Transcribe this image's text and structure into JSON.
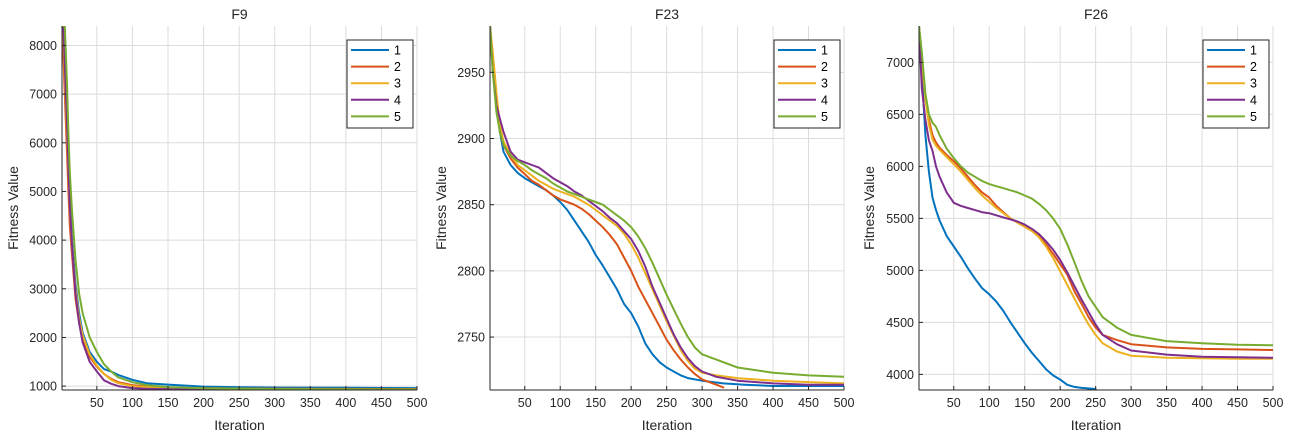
{
  "chart_data": [
    {
      "type": "line",
      "title": "F9",
      "xlabel": "Iteration",
      "ylabel": "Fitness Value",
      "xlim": [
        1,
        500
      ],
      "ylim": [
        920,
        8400
      ],
      "xticks": [
        50,
        100,
        150,
        200,
        250,
        300,
        350,
        400,
        450,
        500
      ],
      "yticks": [
        1000,
        2000,
        3000,
        4000,
        5000,
        6000,
        7000,
        8000
      ],
      "grid": true,
      "legend_position": "top-right",
      "series": [
        {
          "name": "1",
          "color": "#0072BD",
          "x": [
            1,
            3,
            5,
            8,
            10,
            12,
            15,
            20,
            25,
            30,
            40,
            50,
            60,
            70,
            80,
            100,
            120,
            150,
            200,
            250,
            300,
            400,
            500
          ],
          "y": [
            8400,
            8400,
            7800,
            6500,
            5500,
            4800,
            4000,
            3100,
            2500,
            2100,
            1700,
            1500,
            1350,
            1300,
            1230,
            1130,
            1060,
            1030,
            990,
            975,
            970,
            965,
            960
          ]
        },
        {
          "name": "2",
          "color": "#D95319",
          "x": [
            1,
            3,
            5,
            8,
            10,
            12,
            15,
            20,
            25,
            30,
            40,
            50,
            60,
            70,
            80,
            100,
            120,
            150,
            200,
            300,
            400,
            500
          ],
          "y": [
            8400,
            7800,
            7000,
            5800,
            5000,
            4300,
            3700,
            2800,
            2300,
            2000,
            1600,
            1400,
            1250,
            1150,
            1080,
            1020,
            990,
            970,
            955,
            945,
            942,
            940
          ]
        },
        {
          "name": "3",
          "color": "#EDB120",
          "x": [
            1,
            3,
            5,
            8,
            10,
            12,
            15,
            20,
            25,
            30,
            40,
            50,
            60,
            70,
            80,
            100,
            120,
            150,
            200,
            300,
            400,
            500
          ],
          "y": [
            8400,
            8200,
            7400,
            6200,
            5400,
            4600,
            3900,
            3000,
            2400,
            2050,
            1650,
            1420,
            1250,
            1130,
            1060,
            1000,
            980,
            960,
            945,
            935,
            932,
            930
          ]
        },
        {
          "name": "4",
          "color": "#7E2F8E",
          "x": [
            1,
            3,
            5,
            8,
            10,
            12,
            15,
            20,
            25,
            30,
            40,
            50,
            60,
            70,
            80,
            100,
            120,
            150,
            200,
            300,
            400,
            500
          ],
          "y": [
            8400,
            8400,
            7600,
            6400,
            5500,
            4700,
            3900,
            2900,
            2300,
            1900,
            1500,
            1300,
            1120,
            1050,
            1000,
            960,
            945,
            935,
            928,
            924,
            922,
            920
          ]
        },
        {
          "name": "5",
          "color": "#77AC30",
          "x": [
            1,
            3,
            5,
            8,
            10,
            12,
            15,
            20,
            25,
            30,
            40,
            50,
            60,
            70,
            80,
            100,
            120,
            150,
            200,
            300,
            400,
            500
          ],
          "y": [
            8400,
            8400,
            8400,
            7200,
            6200,
            5400,
            4600,
            3600,
            2900,
            2500,
            2000,
            1700,
            1450,
            1300,
            1180,
            1080,
            1020,
            980,
            955,
            940,
            935,
            932
          ]
        }
      ]
    },
    {
      "type": "line",
      "title": "F23",
      "xlabel": "Iteration",
      "ylabel": "Fitness Value",
      "xlim": [
        1,
        500
      ],
      "ylim": [
        2710,
        2985
      ],
      "xticks": [
        50,
        100,
        150,
        200,
        250,
        300,
        350,
        400,
        450,
        500
      ],
      "yticks": [
        2750,
        2800,
        2850,
        2900,
        2950
      ],
      "grid": true,
      "legend_position": "top-right",
      "series": [
        {
          "name": "1",
          "color": "#0072BD",
          "x": [
            1,
            5,
            10,
            15,
            20,
            30,
            40,
            50,
            60,
            70,
            80,
            90,
            100,
            110,
            120,
            130,
            140,
            150,
            160,
            170,
            180,
            190,
            200,
            210,
            220,
            230,
            240,
            250,
            260,
            270,
            280,
            300,
            330,
            360,
            400,
            450,
            500
          ],
          "y": [
            2985,
            2960,
            2930,
            2905,
            2890,
            2880,
            2874,
            2870,
            2867,
            2864,
            2861,
            2857,
            2852,
            2846,
            2838,
            2830,
            2822,
            2812,
            2804,
            2795,
            2786,
            2775,
            2768,
            2758,
            2745,
            2737,
            2731,
            2727,
            2724,
            2721,
            2719,
            2717,
            2715,
            2714,
            2713,
            2713,
            2713
          ]
        },
        {
          "name": "2",
          "color": "#D95319",
          "x": [
            1,
            5,
            10,
            15,
            20,
            30,
            40,
            50,
            60,
            70,
            80,
            90,
            100,
            110,
            120,
            130,
            140,
            150,
            160,
            170,
            180,
            190,
            200,
            210,
            220,
            230,
            240,
            250,
            260,
            270,
            280,
            290,
            300,
            310,
            320,
            330
          ],
          "y": [
            2985,
            2960,
            2925,
            2905,
            2895,
            2885,
            2878,
            2873,
            2868,
            2865,
            2861,
            2857,
            2854,
            2852,
            2850,
            2847,
            2843,
            2838,
            2833,
            2827,
            2820,
            2810,
            2800,
            2788,
            2778,
            2768,
            2758,
            2748,
            2740,
            2733,
            2727,
            2722,
            2718,
            2716,
            2714,
            2712
          ]
        },
        {
          "name": "3",
          "color": "#EDB120",
          "x": [
            1,
            5,
            10,
            15,
            20,
            30,
            40,
            50,
            60,
            70,
            80,
            90,
            100,
            110,
            120,
            130,
            140,
            150,
            160,
            170,
            180,
            190,
            200,
            210,
            220,
            230,
            240,
            250,
            260,
            270,
            280,
            290,
            300,
            320,
            350,
            400,
            450,
            500
          ],
          "y": [
            2985,
            2965,
            2935,
            2910,
            2898,
            2888,
            2880,
            2876,
            2872,
            2868,
            2865,
            2862,
            2860,
            2858,
            2856,
            2853,
            2850,
            2846,
            2842,
            2838,
            2834,
            2828,
            2820,
            2810,
            2798,
            2786,
            2774,
            2762,
            2751,
            2740,
            2732,
            2726,
            2723,
            2721,
            2719,
            2717,
            2716,
            2715
          ]
        },
        {
          "name": "4",
          "color": "#7E2F8E",
          "x": [
            1,
            5,
            10,
            15,
            20,
            30,
            40,
            50,
            60,
            70,
            80,
            90,
            100,
            110,
            120,
            130,
            140,
            150,
            160,
            170,
            180,
            190,
            200,
            210,
            220,
            230,
            240,
            250,
            260,
            270,
            280,
            290,
            300,
            320,
            350,
            400,
            450,
            500
          ],
          "y": [
            2985,
            2950,
            2925,
            2915,
            2905,
            2890,
            2884,
            2882,
            2880,
            2878,
            2874,
            2870,
            2867,
            2864,
            2860,
            2857,
            2853,
            2849,
            2845,
            2840,
            2836,
            2830,
            2824,
            2815,
            2803,
            2788,
            2776,
            2764,
            2752,
            2742,
            2734,
            2728,
            2724,
            2720,
            2717,
            2715,
            2714,
            2714
          ]
        },
        {
          "name": "5",
          "color": "#77AC30",
          "x": [
            1,
            5,
            10,
            15,
            20,
            30,
            40,
            50,
            60,
            70,
            80,
            90,
            100,
            110,
            120,
            130,
            140,
            150,
            160,
            170,
            180,
            190,
            200,
            210,
            220,
            230,
            240,
            250,
            260,
            270,
            280,
            290,
            300,
            320,
            350,
            400,
            450,
            500
          ],
          "y": [
            2985,
            2950,
            2920,
            2905,
            2895,
            2887,
            2883,
            2880,
            2876,
            2873,
            2870,
            2866,
            2863,
            2860,
            2858,
            2856,
            2854,
            2852,
            2850,
            2846,
            2842,
            2838,
            2833,
            2826,
            2817,
            2806,
            2794,
            2782,
            2771,
            2760,
            2750,
            2742,
            2737,
            2733,
            2727,
            2723,
            2721,
            2720
          ]
        }
      ]
    },
    {
      "type": "line",
      "title": "F26",
      "xlabel": "Iteration",
      "ylabel": "Fitness Value",
      "xlim": [
        1,
        500
      ],
      "ylim": [
        3850,
        7350
      ],
      "xticks": [
        50,
        100,
        150,
        200,
        250,
        300,
        350,
        400,
        450,
        500
      ],
      "yticks": [
        4000,
        4500,
        5000,
        5500,
        6000,
        6500,
        7000
      ],
      "grid": true,
      "legend_position": "top-right",
      "series": [
        {
          "name": "1",
          "color": "#0072BD",
          "x": [
            1,
            5,
            10,
            15,
            20,
            25,
            30,
            40,
            50,
            60,
            70,
            80,
            90,
            100,
            110,
            120,
            130,
            140,
            150,
            160,
            170,
            180,
            190,
            200,
            210,
            220,
            230,
            250
          ],
          "y": [
            7350,
            6900,
            6300,
            5950,
            5700,
            5580,
            5480,
            5330,
            5230,
            5130,
            5020,
            4920,
            4830,
            4770,
            4700,
            4610,
            4500,
            4400,
            4300,
            4210,
            4130,
            4050,
            3990,
            3950,
            3900,
            3880,
            3870,
            3860
          ]
        },
        {
          "name": "2",
          "color": "#D95319",
          "x": [
            1,
            5,
            10,
            15,
            20,
            25,
            30,
            40,
            50,
            60,
            70,
            80,
            90,
            100,
            110,
            120,
            130,
            140,
            150,
            160,
            170,
            180,
            190,
            200,
            210,
            220,
            230,
            240,
            250,
            260,
            280,
            300,
            350,
            400,
            450,
            500
          ],
          "y": [
            7350,
            7000,
            6650,
            6450,
            6300,
            6230,
            6180,
            6110,
            6050,
            5980,
            5900,
            5820,
            5750,
            5700,
            5620,
            5560,
            5500,
            5460,
            5420,
            5380,
            5330,
            5250,
            5160,
            5060,
            4960,
            4800,
            4680,
            4550,
            4450,
            4380,
            4330,
            4290,
            4260,
            4245,
            4240,
            4235
          ]
        },
        {
          "name": "3",
          "color": "#EDB120",
          "x": [
            1,
            5,
            10,
            15,
            20,
            25,
            30,
            40,
            50,
            60,
            70,
            80,
            90,
            100,
            110,
            120,
            130,
            140,
            150,
            160,
            170,
            180,
            190,
            200,
            210,
            220,
            230,
            240,
            250,
            260,
            280,
            300,
            350,
            400,
            450,
            500
          ],
          "y": [
            7350,
            7050,
            6650,
            6400,
            6260,
            6200,
            6160,
            6090,
            6020,
            5950,
            5870,
            5790,
            5720,
            5660,
            5600,
            5550,
            5500,
            5460,
            5420,
            5380,
            5320,
            5230,
            5120,
            4990,
            4860,
            4730,
            4600,
            4480,
            4380,
            4300,
            4220,
            4180,
            4160,
            4155,
            4150,
            4150
          ]
        },
        {
          "name": "4",
          "color": "#7E2F8E",
          "x": [
            1,
            5,
            10,
            15,
            20,
            25,
            30,
            40,
            50,
            60,
            70,
            80,
            90,
            100,
            110,
            120,
            130,
            140,
            150,
            160,
            170,
            180,
            190,
            200,
            210,
            220,
            230,
            240,
            250,
            260,
            280,
            300,
            350,
            400,
            450,
            500
          ],
          "y": [
            7350,
            6750,
            6450,
            6250,
            6150,
            6000,
            5900,
            5750,
            5650,
            5620,
            5600,
            5580,
            5560,
            5550,
            5530,
            5510,
            5490,
            5470,
            5440,
            5400,
            5350,
            5280,
            5200,
            5100,
            4980,
            4850,
            4720,
            4600,
            4480,
            4380,
            4290,
            4230,
            4190,
            4170,
            4165,
            4160
          ]
        },
        {
          "name": "5",
          "color": "#77AC30",
          "x": [
            1,
            5,
            10,
            15,
            20,
            25,
            30,
            40,
            50,
            60,
            70,
            80,
            90,
            100,
            110,
            120,
            130,
            140,
            150,
            160,
            170,
            180,
            190,
            200,
            210,
            220,
            230,
            240,
            250,
            260,
            280,
            300,
            350,
            400,
            450,
            500
          ],
          "y": [
            7350,
            7100,
            6700,
            6500,
            6420,
            6380,
            6300,
            6170,
            6080,
            6000,
            5940,
            5900,
            5860,
            5830,
            5810,
            5790,
            5770,
            5750,
            5720,
            5690,
            5640,
            5580,
            5500,
            5400,
            5250,
            5080,
            4900,
            4750,
            4650,
            4550,
            4450,
            4380,
            4320,
            4300,
            4285,
            4280
          ]
        }
      ]
    }
  ]
}
